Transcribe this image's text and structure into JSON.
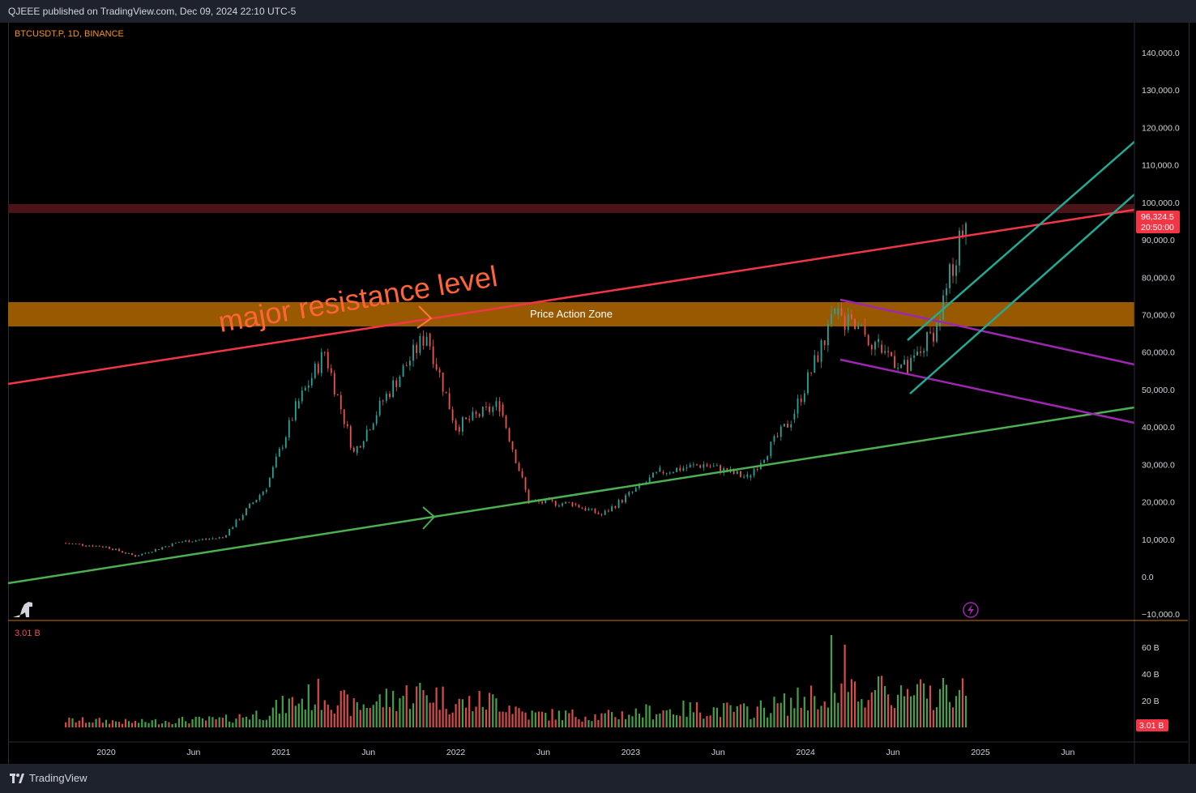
{
  "header": {
    "published": "QJEEE published on TradingView.com, Dec 09, 2024 22:10 UTC-5"
  },
  "symbol_label": "BTCUSDT.P, 1D, BINANCE",
  "footer": {
    "brand": "TradingView"
  },
  "price_tag": {
    "price": "96,324.5",
    "countdown": "20:50:00"
  },
  "volume_tag": "3.01 B",
  "volume_header": "3.01 B",
  "annotations": {
    "resistance_text": "major resistance level",
    "zone_text": "Price Action Zone"
  },
  "colors": {
    "up": "#26a69a",
    "down": "#ef5350",
    "resistance": "#f23645",
    "support": "#4caf50",
    "channel_teal": "#22ab94",
    "channel_purple": "#9c27b0",
    "zone": "#a15e00",
    "upper_zone": "#4a1418"
  },
  "chart_data": [
    {
      "type": "candlestick",
      "title": "BTCUSDT.P, 1D, BINANCE",
      "y_ticks": [
        "140,000.0",
        "130,000.0",
        "120,000.0",
        "110,000.0",
        "100,000.0",
        "90,000.0",
        "80,000.0",
        "70,000.0",
        "60,000.0",
        "50,000.0",
        "40,000.0",
        "30,000.0",
        "20,000.0",
        "10,000.0",
        "0.0",
        "−10,000.0"
      ],
      "ylim": [
        -10000,
        145000
      ],
      "x_ticks": [
        "2020",
        "Jun",
        "2021",
        "Jun",
        "2022",
        "Jun",
        "2023",
        "Jun",
        "2024",
        "Jun",
        "2025",
        "Jun"
      ],
      "approx_close_path": [
        {
          "date": "2019-10",
          "close": 9000
        },
        {
          "date": "2020-01",
          "close": 8000
        },
        {
          "date": "2020-03",
          "close": 5500
        },
        {
          "date": "2020-06",
          "close": 9300
        },
        {
          "date": "2020-09",
          "close": 10500
        },
        {
          "date": "2020-12",
          "close": 24000
        },
        {
          "date": "2021-02",
          "close": 45000
        },
        {
          "date": "2021-04",
          "close": 60000
        },
        {
          "date": "2021-06",
          "close": 33000
        },
        {
          "date": "2021-08",
          "close": 47000
        },
        {
          "date": "2021-11",
          "close": 65000
        },
        {
          "date": "2022-01",
          "close": 40000
        },
        {
          "date": "2022-04",
          "close": 46000
        },
        {
          "date": "2022-06",
          "close": 20000
        },
        {
          "date": "2022-09",
          "close": 19500
        },
        {
          "date": "2022-11",
          "close": 16500
        },
        {
          "date": "2023-03",
          "close": 28000
        },
        {
          "date": "2023-06",
          "close": 30000
        },
        {
          "date": "2023-09",
          "close": 26500
        },
        {
          "date": "2023-12",
          "close": 42000
        },
        {
          "date": "2024-03",
          "close": 70000
        },
        {
          "date": "2024-06",
          "close": 62000
        },
        {
          "date": "2024-08",
          "close": 55000
        },
        {
          "date": "2024-10",
          "close": 67000
        },
        {
          "date": "2024-12",
          "close": 96324.5
        }
      ],
      "levels": {
        "price_action_zone": [
          66500,
          73000
        ],
        "upper_zone": [
          97500,
          100000
        ],
        "last_price": 96324.5
      }
    },
    {
      "type": "bar",
      "title": "Volume",
      "y_ticks": [
        "60 B",
        "40 B",
        "20 B"
      ],
      "ylim": [
        0,
        70
      ],
      "last_value": "3.01 B"
    }
  ]
}
